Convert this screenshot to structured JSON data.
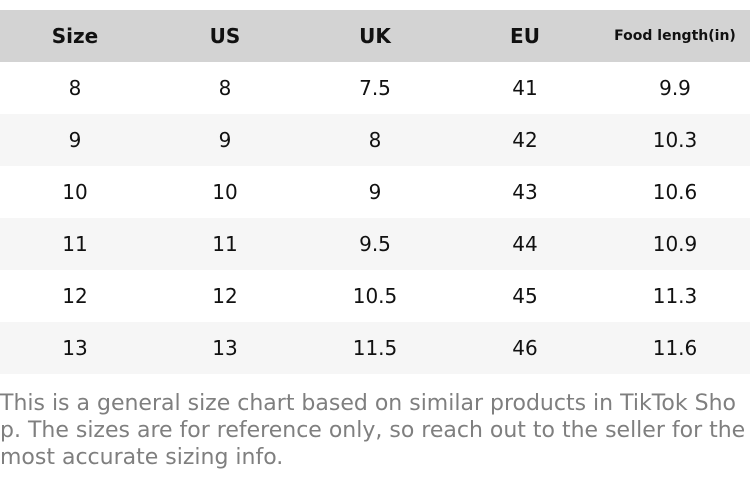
{
  "table": {
    "columns": [
      {
        "label": "Size"
      },
      {
        "label": "US"
      },
      {
        "label": "UK"
      },
      {
        "label": "EU"
      },
      {
        "label": "Food length(in)"
      }
    ],
    "rows": [
      {
        "size": "8",
        "us": "8",
        "uk": "7.5",
        "eu": "41",
        "food_length_in": "9.9"
      },
      {
        "size": "9",
        "us": "9",
        "uk": "8",
        "eu": "42",
        "food_length_in": "10.3"
      },
      {
        "size": "10",
        "us": "10",
        "uk": "9",
        "eu": "43",
        "food_length_in": "10.6"
      },
      {
        "size": "11",
        "us": "11",
        "uk": "9.5",
        "eu": "44",
        "food_length_in": "10.9"
      },
      {
        "size": "12",
        "us": "12",
        "uk": "10.5",
        "eu": "45",
        "food_length_in": "11.3"
      },
      {
        "size": "13",
        "us": "13",
        "uk": "11.5",
        "eu": "46",
        "food_length_in": "11.6"
      }
    ]
  },
  "footer": {
    "disclaimer": "This is a general size chart based on similar products in TikTok Shop. The sizes are for reference only, so reach out to the seller for the most accurate sizing info."
  },
  "colors": {
    "header_bg": "#d3d3d3",
    "row_alt_bg": "#f6f6f6",
    "table_text": "#111111",
    "disclaimer_text": "#7f7f7f",
    "page_bg": "#ffffff"
  }
}
